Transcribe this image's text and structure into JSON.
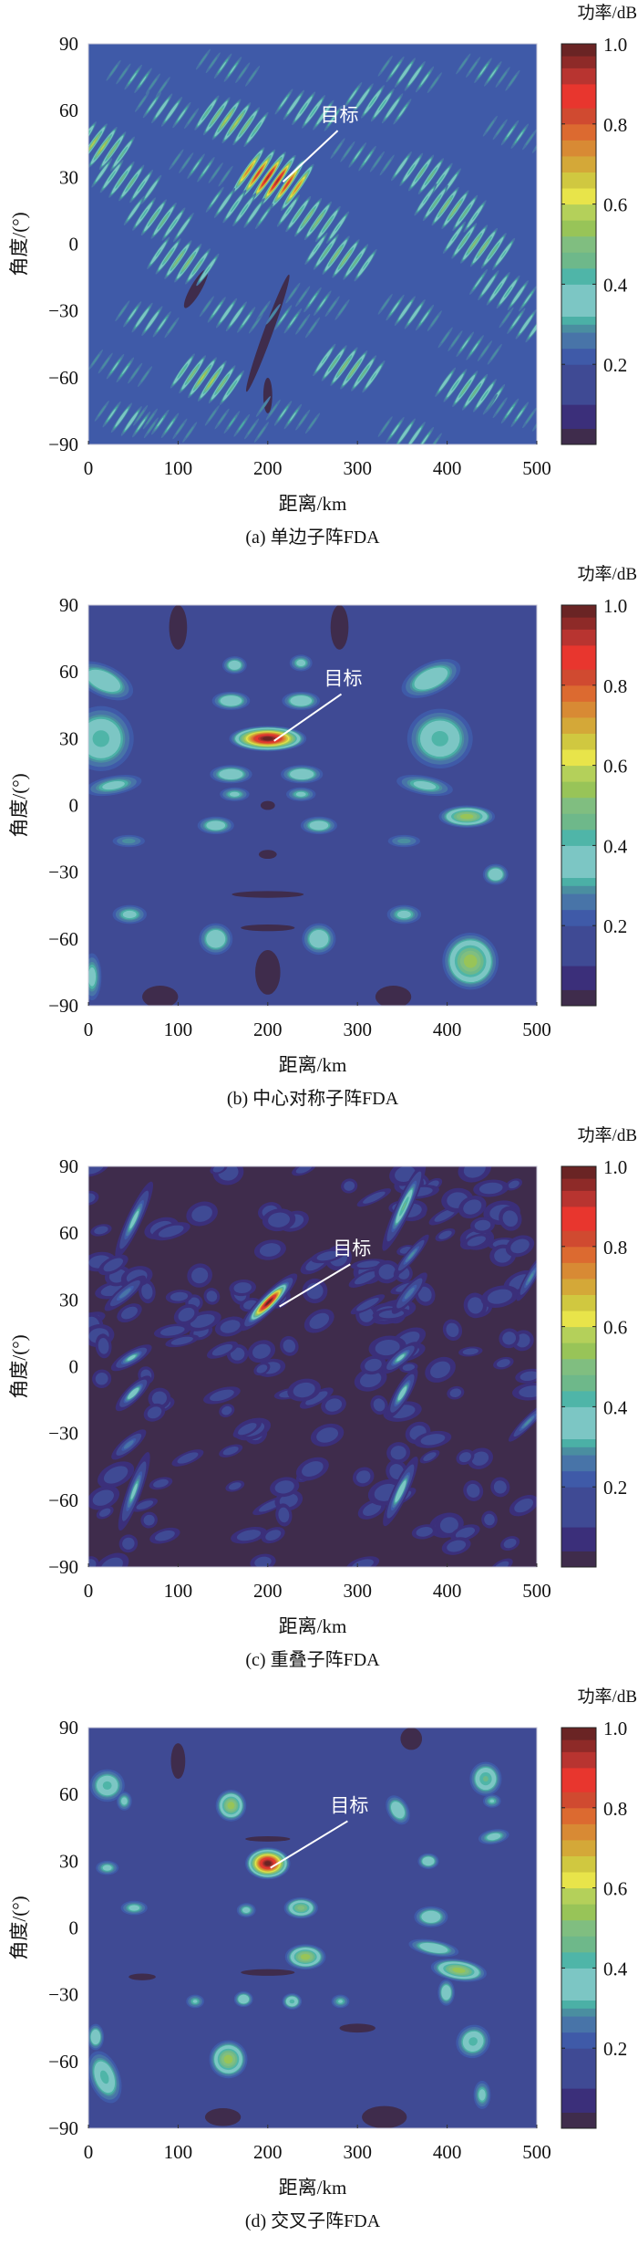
{
  "colormap": [
    [
      0.0,
      "#3f2c4c"
    ],
    [
      0.04,
      "#3b2f7a"
    ],
    [
      0.1,
      "#3f4a94"
    ],
    [
      0.2,
      "#3f5aa8"
    ],
    [
      0.24,
      "#4874a8"
    ],
    [
      0.28,
      "#4a8ea0"
    ],
    [
      0.3,
      "#4bb0a6"
    ],
    [
      0.32,
      "#7cc6c4"
    ],
    [
      0.4,
      "#4fb5a8"
    ],
    [
      0.44,
      "#6eb88a"
    ],
    [
      0.48,
      "#80be80"
    ],
    [
      0.52,
      "#98c458"
    ],
    [
      0.56,
      "#b4d05a"
    ],
    [
      0.6,
      "#e8e44a"
    ],
    [
      0.64,
      "#d0c840"
    ],
    [
      0.68,
      "#d4a838"
    ],
    [
      0.72,
      "#d88a34"
    ],
    [
      0.76,
      "#dc6a30"
    ],
    [
      0.8,
      "#d04a30"
    ],
    [
      0.84,
      "#e8362e"
    ],
    [
      0.9,
      "#b83430"
    ],
    [
      0.94,
      "#8e2a28"
    ],
    [
      0.97,
      "#6a2424"
    ]
  ],
  "chart_data": [
    {
      "type": "heatmap",
      "title": "(a) 单边子阵FDA",
      "xlabel": "距离/km",
      "ylabel": "角度/(°)",
      "colorbar_label": "功率/dB",
      "xlim": [
        0,
        500
      ],
      "ylim": [
        -90,
        90
      ],
      "clim": [
        0,
        1.0
      ],
      "xticks": [
        "0",
        "100",
        "200",
        "300",
        "400",
        "500"
      ],
      "yticks": [
        "90",
        "60",
        "30",
        "0",
        "−30",
        "−60",
        "−90"
      ],
      "colorbar_ticks": [
        "1.0",
        "0.8",
        "0.6",
        "0.4",
        "0.2"
      ],
      "background_level": 0.2,
      "annotation": {
        "text": "目标",
        "x": 217,
        "y": 28,
        "label_x": 280,
        "label_y": 58
      },
      "stripe_groups": [
        [
          200,
          30,
          1.0
        ],
        [
          154,
          56,
          0.6
        ],
        [
          5,
          45,
          0.6
        ],
        [
          37,
          29,
          0.5
        ],
        [
          73,
          12,
          0.5
        ],
        [
          100,
          -7,
          0.55
        ],
        [
          245,
          12,
          0.55
        ],
        [
          276,
          -5,
          0.55
        ],
        [
          371,
          32,
          0.5
        ],
        [
          398,
          17,
          0.55
        ],
        [
          430,
          0,
          0.55
        ],
        [
          457,
          -20,
          0.45
        ],
        [
          488,
          -36,
          0.4
        ],
        [
          127,
          -60,
          0.6
        ],
        [
          285,
          -55,
          0.55
        ],
        [
          420,
          -65,
          0.5
        ],
        [
          240,
          61,
          0.45
        ],
        [
          317,
          64,
          0.45
        ],
        [
          353,
          77,
          0.4
        ],
        [
          82,
          61,
          0.4
        ],
        [
          163,
          17,
          0.45
        ],
        [
          154,
          -31,
          0.4
        ],
        [
          60,
          -33,
          0.4
        ],
        [
          37,
          -78,
          0.4
        ],
        [
          353,
          -85,
          0.4
        ],
        [
          217,
          -76,
          0.35
        ],
        [
          353,
          -30,
          0.4
        ],
        [
          217,
          -33,
          0.35
        ],
        [
          50,
          75,
          0.35
        ],
        [
          150,
          80,
          0.35
        ],
        [
          440,
          78,
          0.35
        ],
        [
          470,
          50,
          0.35
        ],
        [
          120,
          35,
          0.35
        ],
        [
          300,
          40,
          0.35
        ],
        [
          250,
          -25,
          0.35
        ],
        [
          420,
          -45,
          0.35
        ],
        [
          30,
          -55,
          0.35
        ],
        [
          80,
          -80,
          0.35
        ],
        [
          470,
          -75,
          0.35
        ],
        [
          160,
          -80,
          0.33
        ]
      ],
      "lows": [
        [
          200,
          -40,
          5,
          28,
          20
        ],
        [
          200,
          -68,
          5,
          8,
          0
        ],
        [
          120,
          -20,
          6,
          10,
          30
        ]
      ],
      "peaks": []
    },
    {
      "type": "heatmap",
      "title": "(b) 中心对称子阵FDA",
      "xlabel": "距离/km",
      "ylabel": "角度/(°)",
      "colorbar_label": "功率/dB",
      "xlim": [
        0,
        500
      ],
      "ylim": [
        -90,
        90
      ],
      "clim": [
        0,
        1.0
      ],
      "xticks": [
        "0",
        "100",
        "200",
        "300",
        "400",
        "500"
      ],
      "yticks": [
        "90",
        "60",
        "30",
        "0",
        "−30",
        "−60",
        "−90"
      ],
      "colorbar_ticks": [
        "1.0",
        "0.8",
        "0.6",
        "0.4",
        "0.2"
      ],
      "background_level": 0.15,
      "annotation": {
        "text": "目标",
        "x": 207,
        "y": 29,
        "label_x": 284,
        "label_y": 57
      },
      "lows": [
        [
          100,
          80,
          10,
          10,
          0
        ],
        [
          280,
          80,
          10,
          10,
          0
        ],
        [
          200,
          -75,
          14,
          10,
          0
        ],
        [
          80,
          -86,
          20,
          5,
          0
        ],
        [
          340,
          -86,
          20,
          5,
          0
        ],
        [
          200,
          -22,
          10,
          2,
          0
        ],
        [
          200,
          -40,
          40,
          1.5,
          0
        ],
        [
          200,
          -55,
          30,
          1.5,
          0
        ],
        [
          200,
          0,
          8,
          2,
          0
        ]
      ],
      "peaks": [
        [
          200,
          30,
          1.0,
          24,
          3.2,
          0
        ],
        [
          163,
          63,
          0.38,
          12,
          3.5,
          0
        ],
        [
          237,
          64,
          0.35,
          12,
          3.5,
          0
        ],
        [
          159,
          47,
          0.4,
          18,
          3.5,
          0
        ],
        [
          237,
          47,
          0.4,
          18,
          3.5,
          0
        ],
        [
          159,
          14,
          0.4,
          20,
          3.5,
          0
        ],
        [
          238,
          14,
          0.4,
          20,
          3.5,
          0
        ],
        [
          163,
          5,
          0.34,
          16,
          3,
          0
        ],
        [
          237,
          5,
          0.34,
          16,
          3,
          0
        ],
        [
          142,
          -9,
          0.38,
          18,
          3.5,
          0
        ],
        [
          257,
          -9,
          0.38,
          18,
          3.5,
          0
        ],
        [
          45,
          -16,
          0.3,
          20,
          3,
          0
        ],
        [
          352,
          -16,
          0.3,
          20,
          3,
          0
        ],
        [
          422,
          -5,
          0.55,
          22,
          3.5,
          0
        ],
        [
          454,
          -31,
          0.4,
          12,
          4,
          0
        ],
        [
          46,
          -49,
          0.35,
          18,
          4,
          0
        ],
        [
          352,
          -49,
          0.35,
          18,
          4,
          0
        ],
        [
          142,
          -60,
          0.4,
          16,
          6,
          0
        ],
        [
          257,
          -60,
          0.4,
          16,
          6,
          0
        ],
        [
          426,
          -70,
          0.55,
          22,
          9,
          -20
        ],
        [
          14,
          30,
          0.42,
          30,
          12,
          0
        ],
        [
          392,
          30,
          0.42,
          30,
          11,
          0
        ],
        [
          382,
          57,
          0.4,
          30,
          6,
          -25
        ],
        [
          17,
          56,
          0.4,
          30,
          6,
          25
        ],
        [
          28,
          9,
          0.35,
          30,
          4,
          -10
        ],
        [
          375,
          9,
          0.35,
          30,
          4,
          10
        ],
        [
          4,
          -77,
          0.35,
          10,
          10,
          0
        ]
      ]
    },
    {
      "type": "heatmap",
      "title": "(c) 重叠子阵FDA",
      "xlabel": "距离/km",
      "ylabel": "角度/(°)",
      "colorbar_label": "功率/dB",
      "xlim": [
        0,
        500
      ],
      "ylim": [
        -90,
        90
      ],
      "clim": [
        0,
        1.0
      ],
      "xticks": [
        "0",
        "100",
        "200",
        "300",
        "400",
        "500"
      ],
      "yticks": [
        "90",
        "60",
        "30",
        "0",
        "−30",
        "−60",
        "−90"
      ],
      "colorbar_ticks": [
        "1.0",
        "0.8",
        "0.6",
        "0.4",
        "0.2"
      ],
      "background_level": 0.03,
      "annotation": {
        "text": "目标",
        "x": 213,
        "y": 27,
        "label_x": 294,
        "label_y": 53
      },
      "lows": [],
      "peaks": [
        [
          201,
          29,
          1.0,
          4,
          7,
          45
        ],
        [
          51,
          66,
          0.36,
          4,
          9,
          25
        ],
        [
          352,
          72,
          0.45,
          4,
          10,
          25
        ],
        [
          48,
          4,
          0.35,
          4,
          5,
          60
        ],
        [
          50,
          -12,
          0.4,
          4,
          5,
          45
        ],
        [
          348,
          4,
          0.35,
          4,
          5,
          50
        ],
        [
          350,
          -12,
          0.38,
          4,
          6,
          30
        ],
        [
          51,
          -56,
          0.35,
          4,
          9,
          20
        ],
        [
          348,
          -56,
          0.4,
          4,
          8,
          25
        ],
        [
          493,
          40,
          0.3,
          3,
          6,
          30
        ],
        [
          490,
          -25,
          0.3,
          3,
          6,
          45
        ],
        [
          358,
          33,
          0.28,
          4,
          6,
          40
        ],
        [
          41,
          33,
          0.28,
          4,
          6,
          50
        ],
        [
          360,
          50,
          0.3,
          3,
          6,
          40
        ],
        [
          45,
          -35,
          0.28,
          4,
          5,
          50
        ]
      ]
    },
    {
      "type": "heatmap",
      "title": "(d) 交叉子阵FDA",
      "xlabel": "距离/km",
      "ylabel": "角度/(°)",
      "colorbar_label": "功率/dB",
      "xlim": [
        0,
        500
      ],
      "ylim": [
        -90,
        90
      ],
      "clim": [
        0,
        1.0
      ],
      "xticks": [
        "0",
        "100",
        "200",
        "300",
        "400",
        "500"
      ],
      "yticks": [
        "90",
        "60",
        "30",
        "0",
        "−30",
        "−60",
        "−90"
      ],
      "colorbar_ticks": [
        "1.0",
        "0.8",
        "0.6",
        "0.4",
        "0.2"
      ],
      "background_level": 0.15,
      "annotation": {
        "text": "目标",
        "x": 203,
        "y": 27,
        "label_x": 291,
        "label_y": 55
      },
      "lows": [
        [
          100,
          75,
          8,
          8,
          0
        ],
        [
          360,
          85,
          12,
          5,
          0
        ],
        [
          200,
          -20,
          30,
          1.5,
          0
        ],
        [
          300,
          -45,
          20,
          2,
          0
        ],
        [
          150,
          -85,
          20,
          4,
          0
        ],
        [
          330,
          -85,
          25,
          5,
          0
        ],
        [
          60,
          -22,
          15,
          1.5,
          0
        ],
        [
          200,
          40,
          25,
          1.2,
          0
        ]
      ],
      "peaks": [
        [
          200,
          29,
          1.0,
          14,
          4,
          0
        ],
        [
          159,
          55,
          0.55,
          12,
          5,
          0
        ],
        [
          21,
          64,
          0.42,
          16,
          6,
          0
        ],
        [
          40,
          57,
          0.35,
          8,
          4,
          0
        ],
        [
          443,
          67,
          0.45,
          14,
          6,
          0
        ],
        [
          345,
          53,
          0.4,
          10,
          6,
          -30
        ],
        [
          237,
          9,
          0.5,
          14,
          3.5,
          0
        ],
        [
          176,
          8,
          0.35,
          10,
          3,
          0
        ],
        [
          242,
          -13,
          0.55,
          16,
          4,
          0
        ],
        [
          413,
          -19,
          0.55,
          22,
          3.5,
          8
        ],
        [
          379,
          30,
          0.4,
          10,
          3,
          0
        ],
        [
          382,
          5,
          0.4,
          16,
          4,
          0
        ],
        [
          385,
          -9,
          0.4,
          24,
          3,
          10
        ],
        [
          173,
          -32,
          0.4,
          9,
          3,
          0
        ],
        [
          227,
          -33,
          0.42,
          9,
          3,
          0
        ],
        [
          119,
          -33,
          0.33,
          10,
          3,
          0
        ],
        [
          281,
          -33,
          0.33,
          10,
          3,
          0
        ],
        [
          399,
          -29,
          0.4,
          8,
          5,
          0
        ],
        [
          156,
          -59,
          0.55,
          15,
          6,
          0
        ],
        [
          429,
          -51,
          0.42,
          16,
          6,
          -35
        ],
        [
          18,
          -67,
          0.42,
          14,
          10,
          -20
        ],
        [
          439,
          -75,
          0.35,
          9,
          6,
          0
        ],
        [
          21,
          27,
          0.35,
          12,
          3,
          0
        ],
        [
          51,
          9,
          0.35,
          14,
          3,
          0
        ],
        [
          8,
          -49,
          0.4,
          8,
          5,
          0
        ],
        [
          452,
          41,
          0.36,
          16,
          3,
          -10
        ],
        [
          450,
          57,
          0.33,
          10,
          3,
          0
        ]
      ]
    }
  ]
}
